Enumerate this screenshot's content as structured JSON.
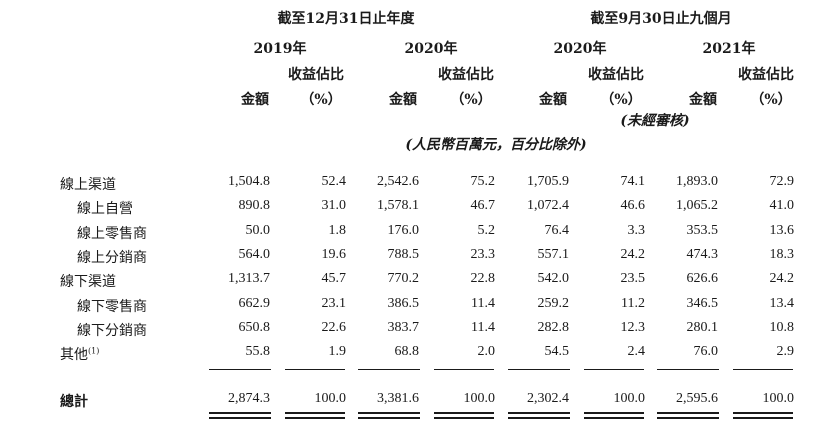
{
  "header": {
    "group1_title": "截至12月31日止年度",
    "group2_title": "截至9月30日止九個月",
    "years": [
      "2019年",
      "2020年",
      "2020年",
      "2021年"
    ],
    "amount_label": "金額",
    "share_label_line1": "收益佔比",
    "share_label_line2": "（%）",
    "unaudited": "(未經審核)",
    "unit_note": "(人民幣百萬元，百分比除外)"
  },
  "rows": [
    {
      "label": "線上渠道",
      "values": [
        "1,504.8",
        "52.4",
        "2,542.6",
        "75.2",
        "1,705.9",
        "74.1",
        "1,893.0",
        "72.9"
      ]
    },
    {
      "label": "線上自營",
      "values": [
        "890.8",
        "31.0",
        "1,578.1",
        "46.7",
        "1,072.4",
        "46.6",
        "1,065.2",
        "41.0"
      ]
    },
    {
      "label": "線上零售商",
      "values": [
        "50.0",
        "1.8",
        "176.0",
        "5.2",
        "76.4",
        "3.3",
        "353.5",
        "13.6"
      ]
    },
    {
      "label": "線上分銷商",
      "values": [
        "564.0",
        "19.6",
        "788.5",
        "23.3",
        "557.1",
        "24.2",
        "474.3",
        "18.3"
      ]
    },
    {
      "label": "線下渠道",
      "values": [
        "1,313.7",
        "45.7",
        "770.2",
        "22.8",
        "542.0",
        "23.5",
        "626.6",
        "24.2"
      ]
    },
    {
      "label": "線下零售商",
      "values": [
        "662.9",
        "23.1",
        "386.5",
        "11.4",
        "259.2",
        "11.2",
        "346.5",
        "13.4"
      ]
    },
    {
      "label": "線下分銷商",
      "values": [
        "650.8",
        "22.6",
        "383.7",
        "11.4",
        "282.8",
        "12.3",
        "280.1",
        "10.8"
      ]
    },
    {
      "label": "其他",
      "footnote": "(1)",
      "values": [
        "55.8",
        "1.9",
        "68.8",
        "2.0",
        "54.5",
        "2.4",
        "76.0",
        "2.9"
      ]
    }
  ],
  "total": {
    "label": "總計",
    "values": [
      "2,874.3",
      "100.0",
      "3,381.6",
      "100.0",
      "2,302.4",
      "100.0",
      "2,595.6",
      "100.0"
    ]
  }
}
